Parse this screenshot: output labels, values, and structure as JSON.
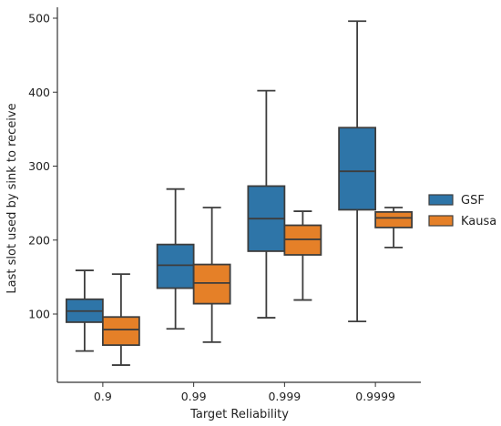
{
  "chart_data": {
    "type": "box",
    "title": "",
    "xlabel": "Target Reliability",
    "ylabel": "Last slot used by sink to receive",
    "categories": [
      "0.9",
      "0.99",
      "0.999",
      "0.9999"
    ],
    "ylim": [
      0,
      520
    ],
    "yticks": [
      100,
      200,
      300,
      400,
      500
    ],
    "grid": false,
    "legend_position": "right",
    "series": [
      {
        "name": "GSF",
        "color": "#2e75a8",
        "boxes": [
          {
            "whisker_low": 50,
            "q1": 89,
            "median": 104,
            "q3": 120,
            "whisker_high": 159
          },
          {
            "whisker_low": 80,
            "q1": 135,
            "median": 166,
            "q3": 194,
            "whisker_high": 269
          },
          {
            "whisker_low": 95,
            "q1": 185,
            "median": 229,
            "q3": 273,
            "whisker_high": 402
          },
          {
            "whisker_low": 90,
            "q1": 241,
            "median": 293,
            "q3": 352,
            "whisker_high": 496
          }
        ]
      },
      {
        "name": "Kausa",
        "color": "#e58028",
        "boxes": [
          {
            "whisker_low": 31,
            "q1": 58,
            "median": 79,
            "q3": 96,
            "whisker_high": 154
          },
          {
            "whisker_low": 62,
            "q1": 114,
            "median": 142,
            "q3": 167,
            "whisker_high": 244
          },
          {
            "whisker_low": 119,
            "q1": 180,
            "median": 201,
            "q3": 220,
            "whisker_high": 239
          },
          {
            "whisker_low": 190,
            "q1": 217,
            "median": 230,
            "q3": 238,
            "whisker_high": 244
          }
        ]
      }
    ]
  }
}
